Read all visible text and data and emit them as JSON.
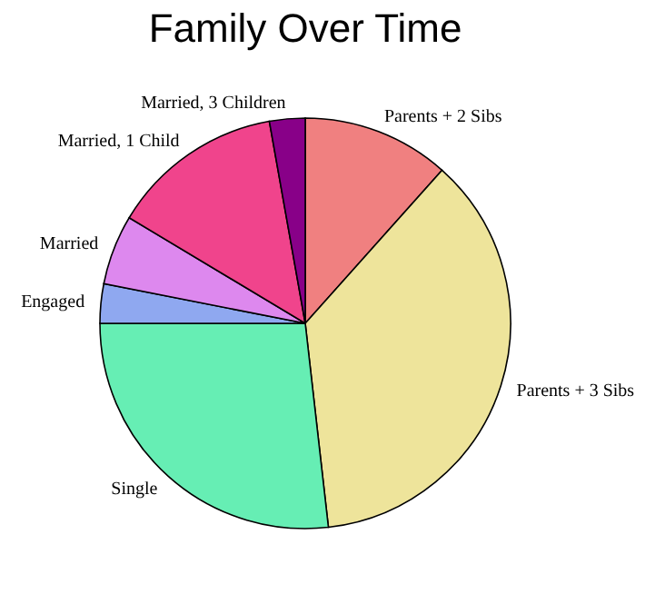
{
  "chart_data": {
    "type": "pie",
    "title": "Family Over Time",
    "categories": [
      "Parents + 2 Sibs",
      "Parents + 3 Sibs",
      "Single",
      "Engaged",
      "Married",
      "Married, 1 Child",
      "Married, 3 Children"
    ],
    "values": [
      11.6,
      36.6,
      26.8,
      3.1,
      5.5,
      13.6,
      2.8
    ],
    "colors": [
      "#f08080",
      "#eee49b",
      "#66eeb4",
      "#8fa8f0",
      "#dd88ee",
      "#f0448c",
      "#880088"
    ],
    "legend": false
  }
}
